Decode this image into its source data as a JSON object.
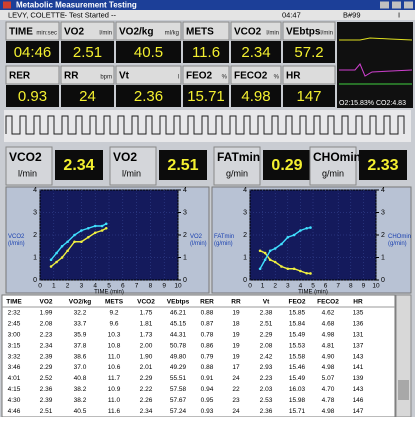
{
  "header": {
    "title": "Metabolic Measurement Testing",
    "patient": "LEVY, COLETTE",
    "status": "-- Test Started --",
    "clock": "04:47",
    "bed": "B#99",
    "mark": "I"
  },
  "tiles": [
    [
      {
        "label": "TIME",
        "unit": "min:sec",
        "value": "04:46"
      },
      {
        "label": "VO2",
        "unit": "l/min",
        "value": "2.51"
      },
      {
        "label": "VO2/kg",
        "unit": "ml/kg",
        "value": "40.5"
      },
      {
        "label": "METS",
        "value": "11.6"
      },
      {
        "label": "VCO2",
        "unit": "l/min",
        "value": "2.34"
      },
      {
        "label": "VEbtps",
        "unit": "l/min",
        "value": "57.2"
      }
    ],
    [
      {
        "label": "RER",
        "value": "0.93"
      },
      {
        "label": "RR",
        "unit": "bpm",
        "value": "24"
      },
      {
        "label": "Vt",
        "unit": "l",
        "value": "2.36"
      },
      {
        "label": "FEO2",
        "unit": "%",
        "value": "15.71"
      },
      {
        "label": "FECO2",
        "unit": "%",
        "value": "4.98"
      },
      {
        "label": "HR",
        "value": "147"
      }
    ]
  ],
  "gas": {
    "o2": "O2:15.83%",
    "co2": "CO2:4.83"
  },
  "readouts": [
    {
      "label": "VCO2",
      "unit": "l/min",
      "value": "2.34"
    },
    {
      "label": "VO2",
      "unit": "l/min",
      "value": "2.51"
    },
    {
      "label": "FATmin",
      "unit": "g/min",
      "value": "0.29"
    },
    {
      "label": "CHOmin",
      "unit": "g/min",
      "value": "2.33"
    }
  ],
  "charts": [
    {
      "type": "line",
      "xlabel": "TIME (min)",
      "ylabel": "VCO2 (l/min)",
      "y2label": "VO2 (l/min)",
      "grid": true,
      "x": [
        0.8,
        1.2,
        1.6,
        2.0,
        2.5,
        3.0,
        3.5,
        4.0,
        4.5,
        4.8
      ],
      "xlim": [
        0,
        10
      ],
      "xticks": [
        0,
        1,
        2,
        3,
        4,
        5,
        6,
        7,
        8,
        9,
        10
      ],
      "ylim": [
        0,
        4
      ],
      "yticks": [
        0,
        1,
        2,
        3,
        4
      ],
      "y2lim": [
        0,
        4
      ],
      "y2ticks": [
        0,
        1,
        2,
        3,
        4
      ],
      "series": [
        {
          "color": "#f0f040",
          "values": [
            0.6,
            0.8,
            1.0,
            1.3,
            1.7,
            1.7,
            1.9,
            2.1,
            2.2,
            2.3
          ]
        },
        {
          "color": "#40e0ff",
          "axis": "y2",
          "values": [
            0.9,
            1.2,
            1.5,
            1.7,
            2.0,
            2.2,
            2.3,
            2.4,
            2.4,
            2.5
          ]
        }
      ]
    },
    {
      "type": "line",
      "xlabel": "TIME (min)",
      "ylabel": "FATmin (g/min)",
      "y2label": "CHOmin (g/min)",
      "grid": true,
      "x": [
        0.8,
        1.2,
        1.6,
        2.0,
        2.5,
        3.0,
        3.5,
        4.0,
        4.5,
        4.8
      ],
      "xlim": [
        0,
        10
      ],
      "xticks": [
        0,
        1,
        2,
        3,
        4,
        5,
        6,
        7,
        8,
        9,
        10
      ],
      "ylim": [
        0,
        4
      ],
      "yticks": [
        0,
        1,
        2,
        3,
        4
      ],
      "y2lim": [
        0,
        4
      ],
      "y2ticks": [
        0,
        1,
        2,
        3,
        4
      ],
      "series": [
        {
          "color": "#f0f040",
          "values": [
            1.3,
            1.2,
            0.9,
            0.8,
            0.6,
            0.5,
            0.5,
            0.4,
            0.3,
            0.29
          ]
        },
        {
          "color": "#40e0ff",
          "axis": "y2",
          "values": [
            0.5,
            0.9,
            1.3,
            1.4,
            1.6,
            1.9,
            2.0,
            2.2,
            2.3,
            2.33
          ]
        }
      ]
    }
  ],
  "table": {
    "columns": [
      "TIME",
      "VO2",
      "VO2/kg",
      "METS",
      "VCO2",
      "VEbtps",
      "RER",
      "RR",
      "Vt",
      "FEO2",
      "FECO2",
      "HR"
    ],
    "rows": [
      [
        "2:32",
        "1.99",
        "32.2",
        "9.2",
        "1.75",
        "46.21",
        "0.88",
        "19",
        "2.38",
        "15.85",
        "4.62",
        "135"
      ],
      [
        "2:45",
        "2.08",
        "33.7",
        "9.6",
        "1.81",
        "45.15",
        "0.87",
        "18",
        "2.51",
        "15.84",
        "4.68",
        "136"
      ],
      [
        "3:00",
        "2.23",
        "35.9",
        "10.3",
        "1.73",
        "44.31",
        "0.78",
        "19",
        "2.29",
        "15.49",
        "4.98",
        "131"
      ],
      [
        "3:15",
        "2.34",
        "37.8",
        "10.8",
        "2.00",
        "50.78",
        "0.86",
        "19",
        "2.08",
        "15.53",
        "4.81",
        "137"
      ],
      [
        "3:32",
        "2.39",
        "38.6",
        "11.0",
        "1.90",
        "49.80",
        "0.79",
        "19",
        "2.42",
        "15.58",
        "4.90",
        "143"
      ],
      [
        "3:46",
        "2.29",
        "37.0",
        "10.6",
        "2.01",
        "49.29",
        "0.88",
        "17",
        "2.93",
        "15.46",
        "4.98",
        "141"
      ],
      [
        "4:01",
        "2.52",
        "40.8",
        "11.7",
        "2.29",
        "55.51",
        "0.91",
        "24",
        "2.23",
        "15.49",
        "5.07",
        "139"
      ],
      [
        "4:15",
        "2.36",
        "38.2",
        "10.9",
        "2.22",
        "57.58",
        "0.94",
        "22",
        "2.03",
        "16.03",
        "4.70",
        "143"
      ],
      [
        "4:30",
        "2.39",
        "38.2",
        "11.0",
        "2.26",
        "57.67",
        "0.95",
        "23",
        "2.53",
        "15.98",
        "4.78",
        "146"
      ],
      [
        "4:46",
        "2.51",
        "40.5",
        "11.6",
        "2.34",
        "57.24",
        "0.93",
        "24",
        "2.36",
        "15.71",
        "4.98",
        "147"
      ]
    ]
  }
}
